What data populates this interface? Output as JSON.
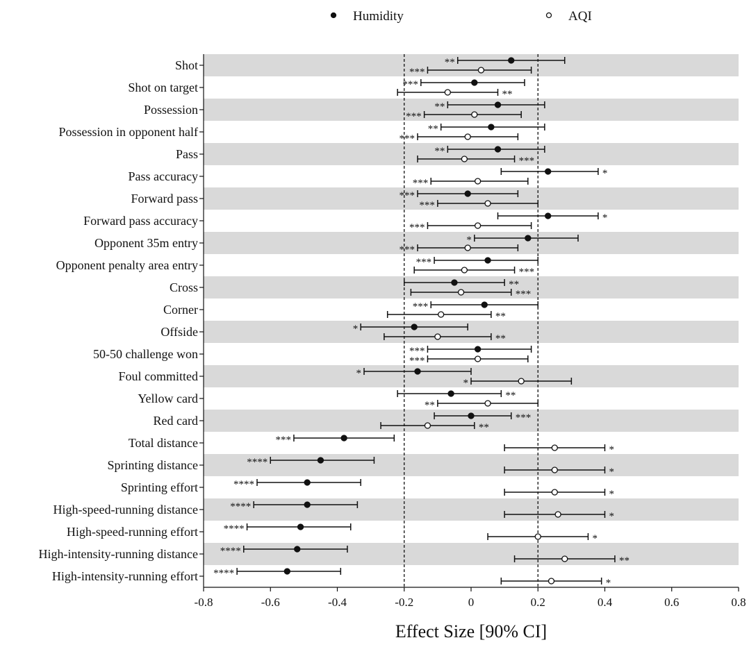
{
  "chart_data": {
    "type": "forest",
    "title": "",
    "xlabel": "Effect Size [90% CI]",
    "ylabel": "",
    "xlim": [
      -0.8,
      0.8
    ],
    "xticks": [
      -0.8,
      -0.6,
      -0.4,
      -0.2,
      0,
      0.2,
      0.4,
      0.6,
      0.8
    ],
    "xtick_labels": [
      "-0.8",
      "-0.6",
      "-0.4",
      "-0.2",
      "0",
      "0.2",
      "0.4",
      "0.6",
      "0.8"
    ],
    "reference_lines": [
      -0.2,
      0.2
    ],
    "row_shading": "alternating grey bands",
    "legend_position": "top",
    "legend": [
      {
        "series": "Humidity",
        "label": "Humidity",
        "marker": "filled-circle"
      },
      {
        "series": "AQI",
        "label": "AQI",
        "marker": "open-circle"
      }
    ],
    "categories": [
      "Shot",
      "Shot on target",
      "Possession",
      "Possession in opponent half",
      "Pass",
      "Pass accuracy",
      "Forward pass",
      "Forward pass accuracy",
      "Opponent 35m entry",
      "Opponent penalty area entry",
      "Cross",
      "Corner",
      "Offside",
      "50-50 challenge won",
      "Foul committed",
      "Yellow card",
      "Red card",
      "Total distance",
      "Sprinting distance",
      "Sprinting effort",
      "High-speed-running distance",
      "High-speed-running effort",
      "High-intensity-running distance",
      "High-intensity-running effort"
    ],
    "series": [
      {
        "name": "Humidity",
        "points": [
          {
            "est": 0.12,
            "lo": -0.04,
            "hi": 0.28,
            "sig": "**",
            "sig_pos": "left"
          },
          {
            "est": 0.01,
            "lo": -0.15,
            "hi": 0.16,
            "sig": "***",
            "sig_pos": "left"
          },
          {
            "est": 0.08,
            "lo": -0.07,
            "hi": 0.22,
            "sig": "**",
            "sig_pos": "left"
          },
          {
            "est": 0.06,
            "lo": -0.09,
            "hi": 0.22,
            "sig": "**",
            "sig_pos": "left"
          },
          {
            "est": 0.08,
            "lo": -0.07,
            "hi": 0.22,
            "sig": "**",
            "sig_pos": "left"
          },
          {
            "est": 0.23,
            "lo": 0.09,
            "hi": 0.38,
            "sig": "*",
            "sig_pos": "right"
          },
          {
            "est": -0.01,
            "lo": -0.16,
            "hi": 0.14,
            "sig": "***",
            "sig_pos": "left"
          },
          {
            "est": 0.23,
            "lo": 0.08,
            "hi": 0.38,
            "sig": "*",
            "sig_pos": "right"
          },
          {
            "est": 0.17,
            "lo": 0.01,
            "hi": 0.32,
            "sig": "*",
            "sig_pos": "left"
          },
          {
            "est": 0.05,
            "lo": -0.11,
            "hi": 0.2,
            "sig": "***",
            "sig_pos": "left"
          },
          {
            "est": -0.05,
            "lo": -0.2,
            "hi": 0.1,
            "sig": "**",
            "sig_pos": "right"
          },
          {
            "est": 0.04,
            "lo": -0.12,
            "hi": 0.2,
            "sig": "***",
            "sig_pos": "left"
          },
          {
            "est": -0.17,
            "lo": -0.33,
            "hi": -0.01,
            "sig": "*",
            "sig_pos": "left"
          },
          {
            "est": 0.02,
            "lo": -0.13,
            "hi": 0.18,
            "sig": "***",
            "sig_pos": "left"
          },
          {
            "est": -0.16,
            "lo": -0.32,
            "hi": 0.0,
            "sig": "*",
            "sig_pos": "left"
          },
          {
            "est": -0.06,
            "lo": -0.22,
            "hi": 0.09,
            "sig": "**",
            "sig_pos": "right"
          },
          {
            "est": 0.0,
            "lo": -0.11,
            "hi": 0.12,
            "sig": "***",
            "sig_pos": "right"
          },
          {
            "est": -0.38,
            "lo": -0.53,
            "hi": -0.23,
            "sig": "***",
            "sig_pos": "left"
          },
          {
            "est": -0.45,
            "lo": -0.6,
            "hi": -0.29,
            "sig": "****",
            "sig_pos": "left"
          },
          {
            "est": -0.49,
            "lo": -0.64,
            "hi": -0.33,
            "sig": "****",
            "sig_pos": "left"
          },
          {
            "est": -0.49,
            "lo": -0.65,
            "hi": -0.34,
            "sig": "****",
            "sig_pos": "left"
          },
          {
            "est": -0.51,
            "lo": -0.67,
            "hi": -0.36,
            "sig": "****",
            "sig_pos": "left"
          },
          {
            "est": -0.52,
            "lo": -0.68,
            "hi": -0.37,
            "sig": "****",
            "sig_pos": "left"
          },
          {
            "est": -0.55,
            "lo": -0.7,
            "hi": -0.39,
            "sig": "****",
            "sig_pos": "left"
          }
        ]
      },
      {
        "name": "AQI",
        "points": [
          {
            "est": 0.03,
            "lo": -0.13,
            "hi": 0.18,
            "sig": "***",
            "sig_pos": "left"
          },
          {
            "est": -0.07,
            "lo": -0.22,
            "hi": 0.08,
            "sig": "**",
            "sig_pos": "right"
          },
          {
            "est": 0.01,
            "lo": -0.14,
            "hi": 0.15,
            "sig": "***",
            "sig_pos": "left"
          },
          {
            "est": -0.01,
            "lo": -0.16,
            "hi": 0.14,
            "sig": "***",
            "sig_pos": "left"
          },
          {
            "est": -0.02,
            "lo": -0.16,
            "hi": 0.13,
            "sig": "***",
            "sig_pos": "right"
          },
          {
            "est": 0.02,
            "lo": -0.12,
            "hi": 0.17,
            "sig": "***",
            "sig_pos": "left"
          },
          {
            "est": 0.05,
            "lo": -0.1,
            "hi": 0.2,
            "sig": "***",
            "sig_pos": "left"
          },
          {
            "est": 0.02,
            "lo": -0.13,
            "hi": 0.18,
            "sig": "***",
            "sig_pos": "left"
          },
          {
            "est": -0.01,
            "lo": -0.16,
            "hi": 0.14,
            "sig": "***",
            "sig_pos": "left"
          },
          {
            "est": -0.02,
            "lo": -0.17,
            "hi": 0.13,
            "sig": "***",
            "sig_pos": "right"
          },
          {
            "est": -0.03,
            "lo": -0.18,
            "hi": 0.12,
            "sig": "***",
            "sig_pos": "right"
          },
          {
            "est": -0.09,
            "lo": -0.25,
            "hi": 0.06,
            "sig": "**",
            "sig_pos": "right"
          },
          {
            "est": -0.1,
            "lo": -0.26,
            "hi": 0.06,
            "sig": "**",
            "sig_pos": "right"
          },
          {
            "est": 0.02,
            "lo": -0.13,
            "hi": 0.17,
            "sig": "***",
            "sig_pos": "left"
          },
          {
            "est": 0.15,
            "lo": 0.0,
            "hi": 0.3,
            "sig": "*",
            "sig_pos": "left"
          },
          {
            "est": 0.05,
            "lo": -0.1,
            "hi": 0.2,
            "sig": "**",
            "sig_pos": "left"
          },
          {
            "est": -0.13,
            "lo": -0.27,
            "hi": 0.01,
            "sig": "**",
            "sig_pos": "right"
          },
          {
            "est": 0.25,
            "lo": 0.1,
            "hi": 0.4,
            "sig": "*",
            "sig_pos": "right"
          },
          {
            "est": 0.25,
            "lo": 0.1,
            "hi": 0.4,
            "sig": "*",
            "sig_pos": "right"
          },
          {
            "est": 0.25,
            "lo": 0.1,
            "hi": 0.4,
            "sig": "*",
            "sig_pos": "right"
          },
          {
            "est": 0.26,
            "lo": 0.1,
            "hi": 0.4,
            "sig": "*",
            "sig_pos": "right"
          },
          {
            "est": 0.2,
            "lo": 0.05,
            "hi": 0.35,
            "sig": "*",
            "sig_pos": "right"
          },
          {
            "est": 0.28,
            "lo": 0.13,
            "hi": 0.43,
            "sig": "**",
            "sig_pos": "right"
          },
          {
            "est": 0.24,
            "lo": 0.09,
            "hi": 0.39,
            "sig": "*",
            "sig_pos": "right"
          }
        ]
      }
    ]
  }
}
